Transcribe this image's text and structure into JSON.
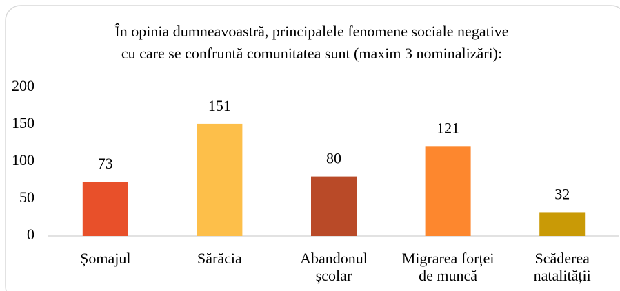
{
  "chart_data": {
    "type": "bar",
    "title": [
      "În opinia dumneavoastră, principalele fenomene sociale negative",
      "cu care se confruntă comunitatea sunt (maxim 3 nominalizări):"
    ],
    "categories": [
      "Șomajul",
      "Sărăcia",
      "Abandonul\nșcolar",
      "Migrarea forței\nde muncă",
      "Scăderea\nnatalității"
    ],
    "values": [
      73,
      151,
      80,
      121,
      32
    ],
    "colors": [
      "#e8502a",
      "#fdbf4a",
      "#b94a28",
      "#fd872e",
      "#c99a06"
    ],
    "ylim": [
      0,
      200
    ],
    "yticks": [
      0,
      50,
      100,
      150,
      200
    ],
    "grid": false
  }
}
